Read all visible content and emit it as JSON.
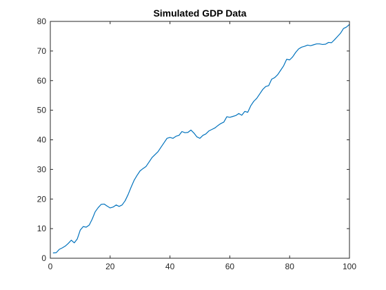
{
  "chart_data": {
    "type": "line",
    "title": "Simulated GDP Data",
    "xlabel": "",
    "ylabel": "",
    "xlim": [
      0,
      100
    ],
    "ylim": [
      0,
      80
    ],
    "xticks": [
      0,
      20,
      40,
      60,
      80,
      100
    ],
    "yticks": [
      0,
      10,
      20,
      30,
      40,
      50,
      60,
      70,
      80
    ],
    "grid": false,
    "legend": "none",
    "series": [
      {
        "color": "#0072BD",
        "x": [
          1,
          2,
          3,
          4,
          5,
          6,
          7,
          8,
          9,
          10,
          11,
          12,
          13,
          14,
          15,
          16,
          17,
          18,
          19,
          20,
          21,
          22,
          23,
          24,
          25,
          26,
          27,
          28,
          29,
          30,
          31,
          32,
          33,
          34,
          35,
          36,
          37,
          38,
          39,
          40,
          41,
          42,
          43,
          44,
          45,
          46,
          47,
          48,
          49,
          50,
          51,
          52,
          53,
          54,
          55,
          56,
          57,
          58,
          59,
          60,
          61,
          62,
          63,
          64,
          65,
          66,
          67,
          68,
          69,
          70,
          71,
          72,
          73,
          74,
          75,
          76,
          77,
          78,
          79,
          80,
          81,
          82,
          83,
          84,
          85,
          86,
          87,
          88,
          89,
          90,
          91,
          92,
          93,
          94,
          95,
          96,
          97,
          98,
          99,
          100
        ],
        "values": [
          1.8,
          1.9,
          3.0,
          3.5,
          4.1,
          5.0,
          6.1,
          5.2,
          6.5,
          9.5,
          10.7,
          10.5,
          11.2,
          13.2,
          15.7,
          17.1,
          18.2,
          18.3,
          17.6,
          17.0,
          17.3,
          18.0,
          17.5,
          18.0,
          19.4,
          21.5,
          24.0,
          26.3,
          28.0,
          29.5,
          30.3,
          31.0,
          32.5,
          34.0,
          35.0,
          36.0,
          37.5,
          39.0,
          40.5,
          40.8,
          40.5,
          41.2,
          41.5,
          42.8,
          42.4,
          42.5,
          43.3,
          42.3,
          41.0,
          40.5,
          41.5,
          42.0,
          43.0,
          43.5,
          44.0,
          44.8,
          45.5,
          46.0,
          47.8,
          47.6,
          47.9,
          48.2,
          48.9,
          48.3,
          49.6,
          49.3,
          51.5,
          53.0,
          54.0,
          55.5,
          57.0,
          58.0,
          58.3,
          60.5,
          61.0,
          62.0,
          63.5,
          65.0,
          67.2,
          67.0,
          68.0,
          69.5,
          70.7,
          71.3,
          71.6,
          72.0,
          71.8,
          72.1,
          72.4,
          72.4,
          72.2,
          72.3,
          72.9,
          72.8,
          73.8,
          74.9,
          76.0,
          77.6,
          78.1,
          79.0
        ]
      }
    ]
  }
}
